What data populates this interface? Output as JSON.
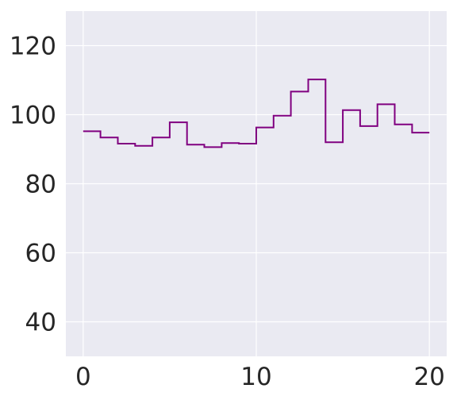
{
  "chart_data": {
    "type": "line",
    "drawstyle": "steps-post",
    "title": "",
    "xlabel": "",
    "ylabel": "",
    "xlim": [
      -1,
      21
    ],
    "ylim": [
      30,
      130
    ],
    "grid": true,
    "x_ticks": [
      0,
      10,
      20
    ],
    "x_tick_labels": [
      "0",
      "10",
      "20"
    ],
    "y_ticks": [
      40,
      60,
      80,
      100,
      120
    ],
    "y_tick_labels": [
      "40",
      "60",
      "80",
      "100",
      "120"
    ],
    "colors": {
      "line": "#800080",
      "plot_background": "#eaeaf2",
      "grid": "#ffffff",
      "text": "#262626"
    },
    "series": [
      {
        "x": [
          0,
          1,
          2,
          3,
          4,
          5,
          6,
          7,
          8,
          9,
          10,
          11,
          12,
          13,
          14,
          15,
          16,
          17,
          18,
          19,
          20
        ],
        "y": [
          95.2,
          93.4,
          91.6,
          91.0,
          93.4,
          97.8,
          91.3,
          90.6,
          91.8,
          91.6,
          96.3,
          99.7,
          106.7,
          110.2,
          92.0,
          101.3,
          96.7,
          103.0,
          97.2,
          94.8,
          94.8
        ]
      }
    ]
  }
}
